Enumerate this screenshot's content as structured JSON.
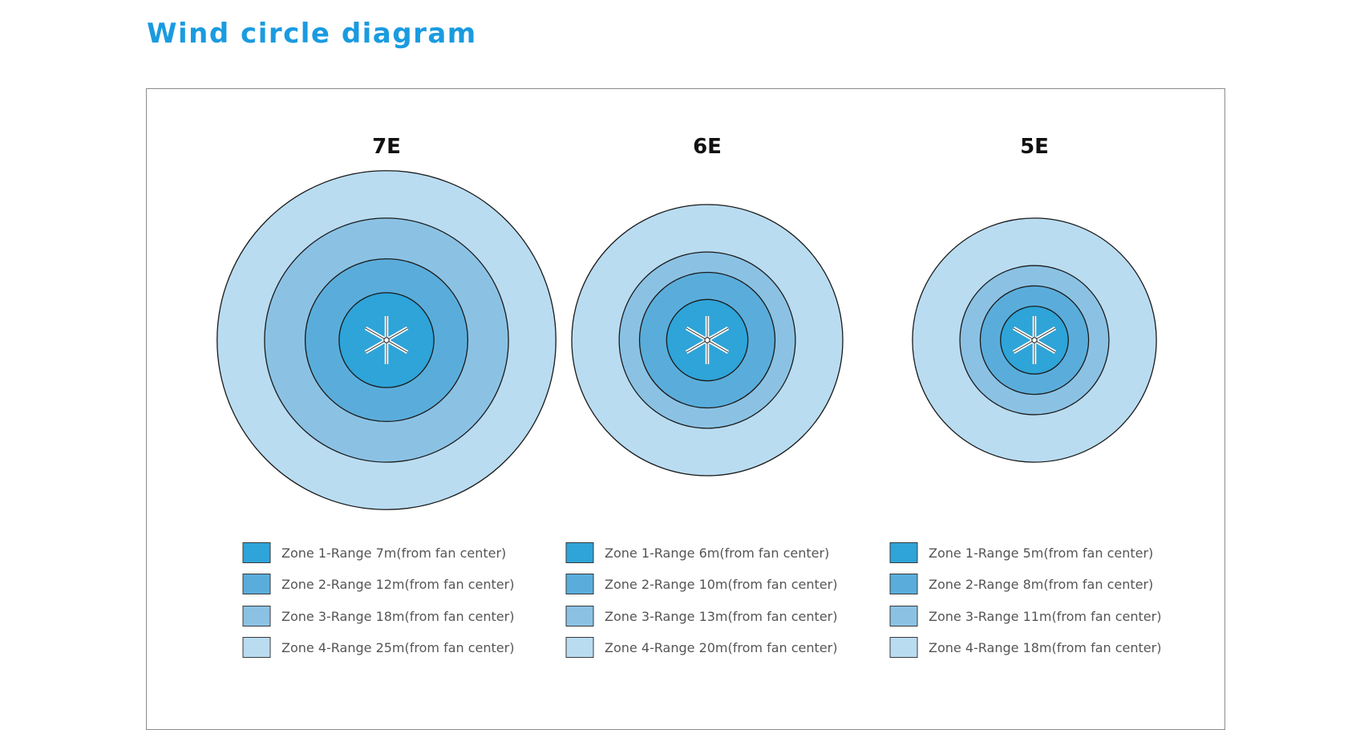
{
  "title": "Wind circle diagram",
  "colors": {
    "title": "#1a9be0",
    "zone1": "#2ea4d8",
    "zone2": "#5aaddb",
    "zone3": "#8bc2e4",
    "zone4": "#b9dcf1",
    "outline": "#1a1a1a",
    "frame": "#8c8c8c"
  },
  "fans": [
    {
      "model": "7E",
      "icon": "fan-icon",
      "zones": [
        {
          "zone": 1,
          "range_m": 7,
          "label": "Zone 1-Range 7m(from fan center)"
        },
        {
          "zone": 2,
          "range_m": 12,
          "label": "Zone 2-Range 12m(from fan center)"
        },
        {
          "zone": 3,
          "range_m": 18,
          "label": "Zone 3-Range 18m(from fan center)"
        },
        {
          "zone": 4,
          "range_m": 25,
          "label": "Zone 4-Range 25m(from fan center)"
        }
      ]
    },
    {
      "model": "6E",
      "icon": "fan-icon",
      "zones": [
        {
          "zone": 1,
          "range_m": 6,
          "label": "Zone 1-Range 6m(from fan center)"
        },
        {
          "zone": 2,
          "range_m": 10,
          "label": "Zone 2-Range 10m(from fan center)"
        },
        {
          "zone": 3,
          "range_m": 13,
          "label": "Zone 3-Range 13m(from fan center)"
        },
        {
          "zone": 4,
          "range_m": 20,
          "label": "Zone 4-Range 20m(from fan center)"
        }
      ]
    },
    {
      "model": "5E",
      "icon": "fan-icon",
      "zones": [
        {
          "zone": 1,
          "range_m": 5,
          "label": "Zone 1-Range 5m(from fan center)"
        },
        {
          "zone": 2,
          "range_m": 8,
          "label": "Zone 2-Range 8m(from fan center)"
        },
        {
          "zone": 3,
          "range_m": 11,
          "label": "Zone 3-Range 11m(from fan center)"
        },
        {
          "zone": 4,
          "range_m": 18,
          "label": "Zone 4-Range 18m(from fan center)"
        }
      ]
    }
  ]
}
